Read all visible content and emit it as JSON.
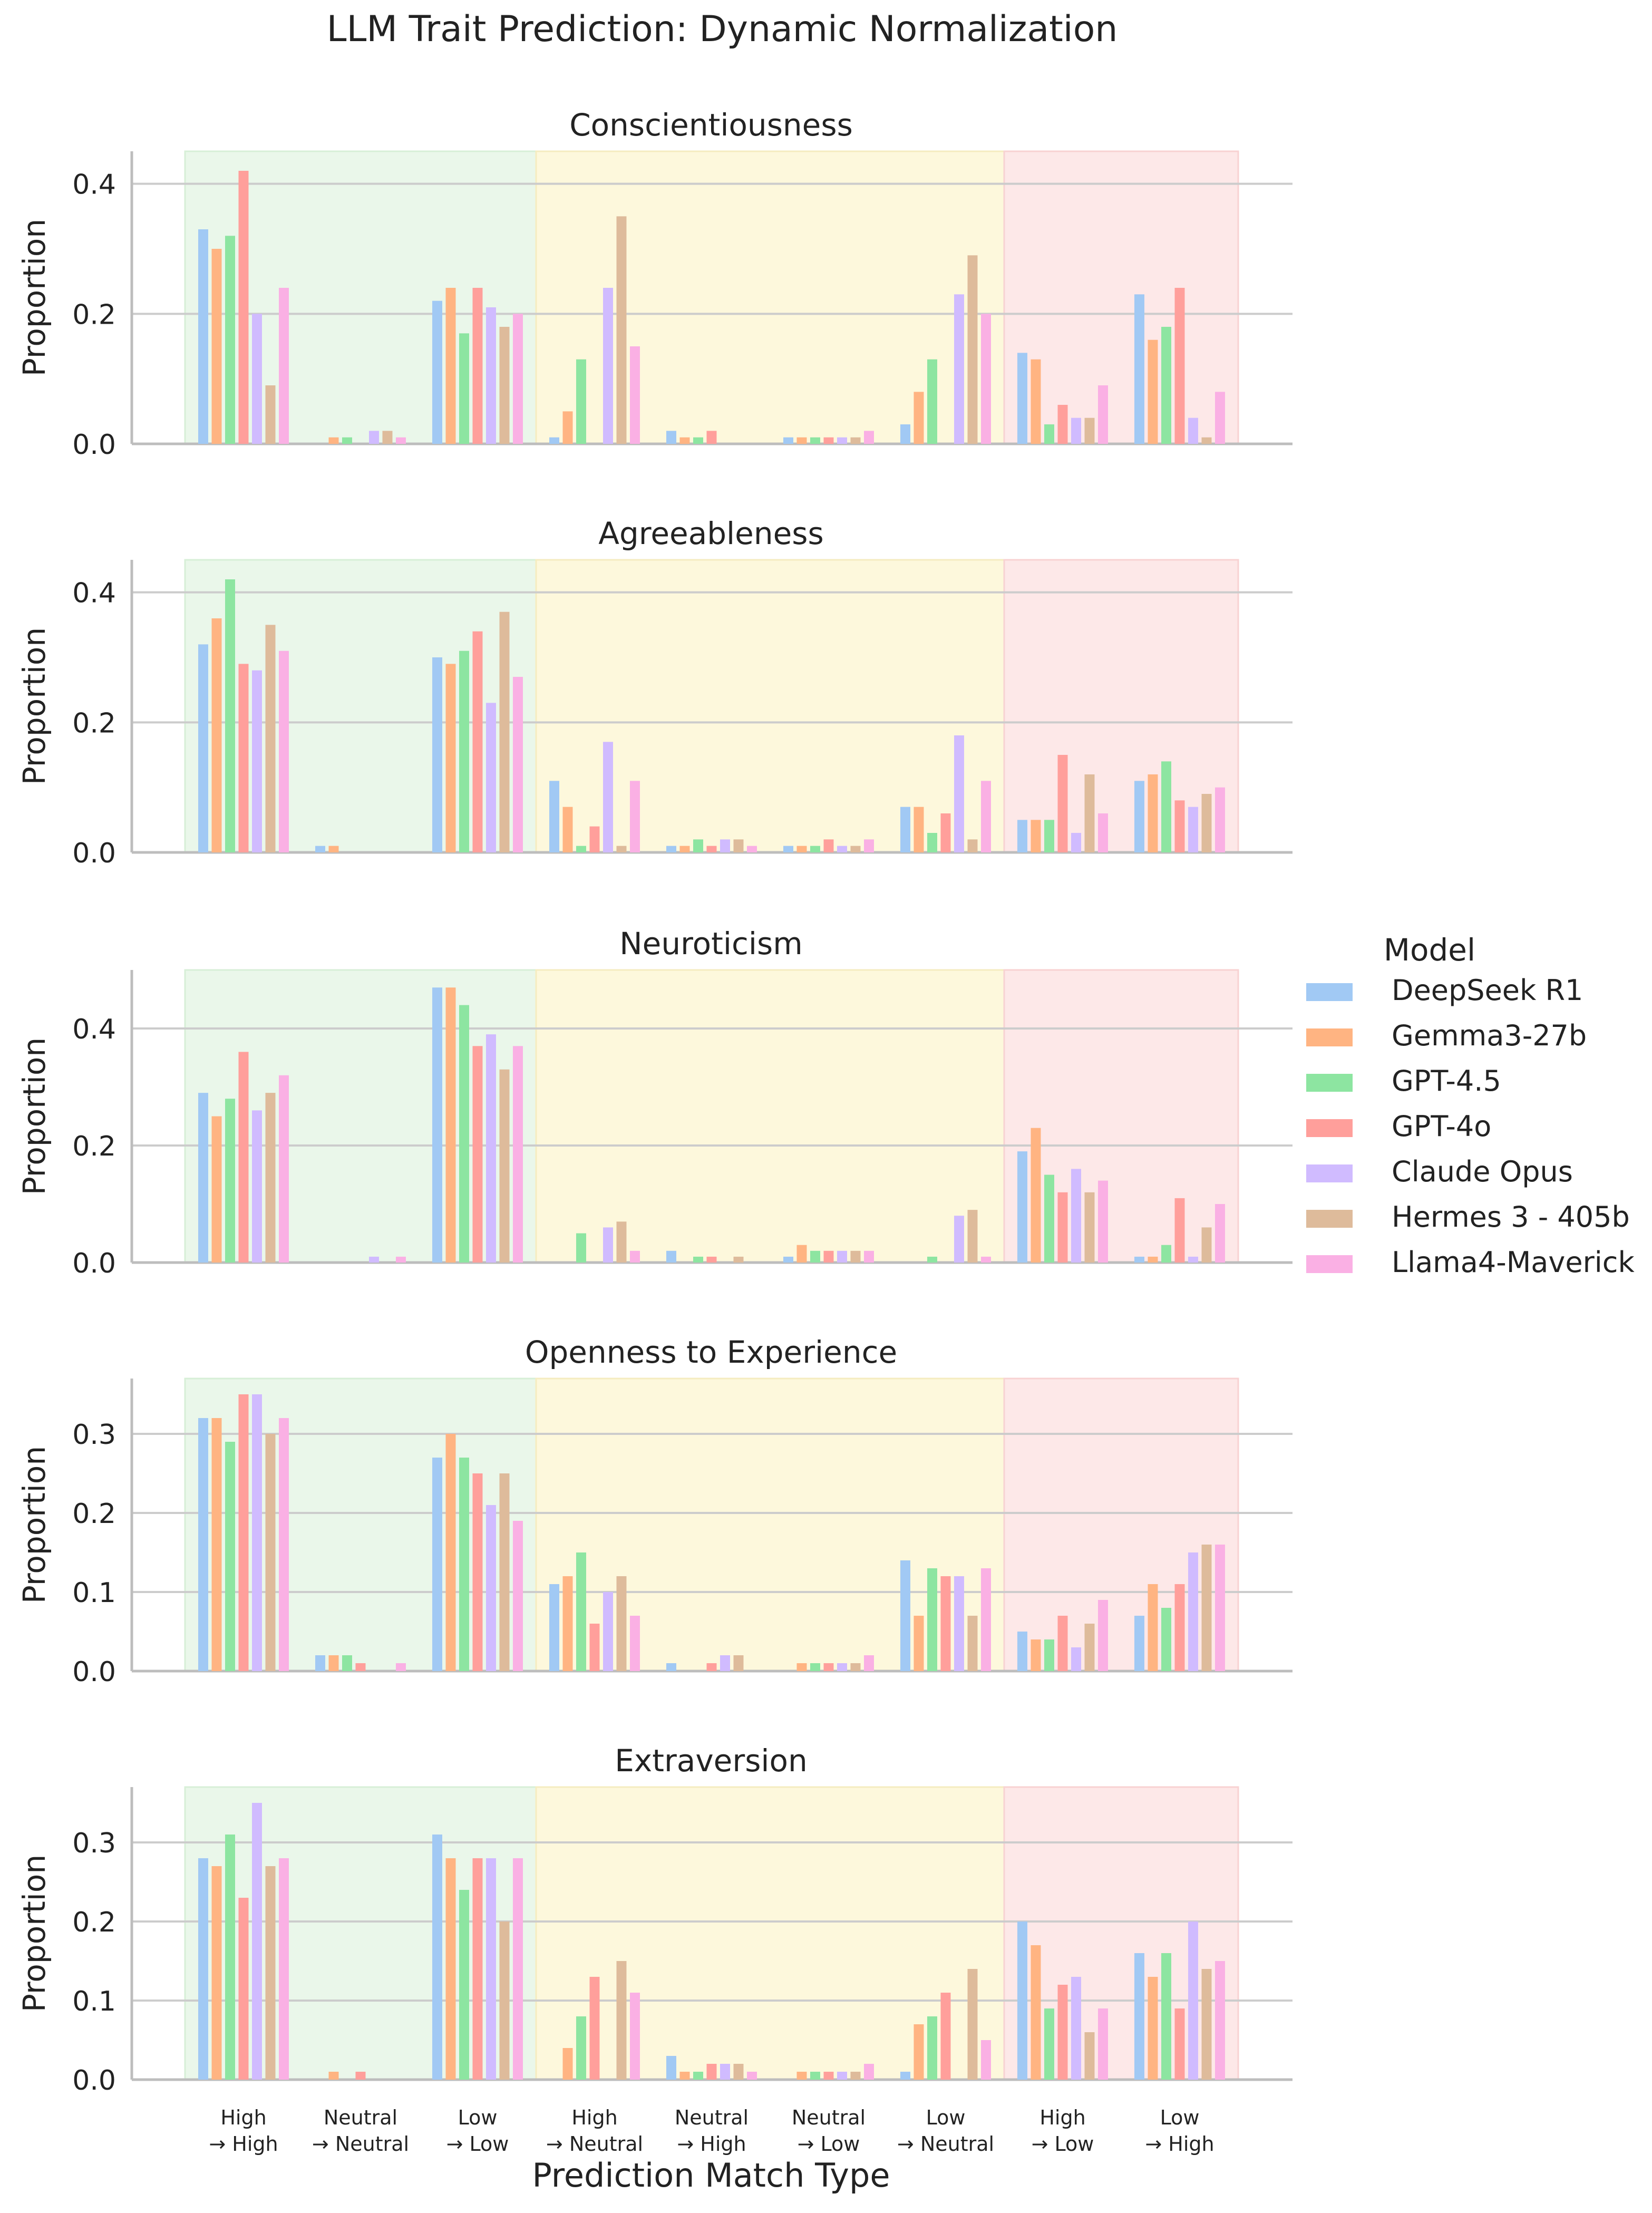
{
  "title": "LLM Trait Prediction: Dynamic Normalization",
  "xlabel": "Prediction Match Type",
  "ylabel": "Proportion",
  "categories": [
    [
      "High",
      "→ High"
    ],
    [
      "Neutral",
      "→ Neutral"
    ],
    [
      "Low",
      "→ Low"
    ],
    [
      "High",
      "→ Neutral"
    ],
    [
      "Neutral",
      "→ High"
    ],
    [
      "Neutral",
      "→ Low"
    ],
    [
      "Low",
      "→ Neutral"
    ],
    [
      "High",
      "→ Low"
    ],
    [
      "Low",
      "→ High"
    ]
  ],
  "legend": {
    "title": "Model",
    "entries": [
      "DeepSeek R1",
      "Gemma3-27b",
      "GPT-4.5",
      "GPT-4o",
      "Claude Opus",
      "Hermes 3 - 405b",
      "Llama4-Maverick"
    ]
  },
  "colors": {
    "series": [
      "#a1c9f4",
      "#ffb482",
      "#8de5a1",
      "#ff9f9b",
      "#d0bbff",
      "#debb9b",
      "#fab0e4"
    ],
    "regions": [
      "#eaf7ea",
      "#fdf8dc",
      "#fde8e8"
    ],
    "region_edges": [
      "#d7efd7",
      "#f5ecc0",
      "#f8d2d2"
    ],
    "grid": "#cccccc",
    "axis": "#bdbdbd"
  },
  "region_spans": [
    [
      0,
      2
    ],
    [
      3,
      6
    ],
    [
      7,
      8
    ]
  ],
  "chart_data": [
    {
      "type": "bar",
      "title": "Conscientiousness",
      "ylim": [
        0,
        0.45
      ],
      "yticks": [
        0.0,
        0.2,
        0.4
      ],
      "tick_labels": [
        "0.0",
        "0.2",
        "0.4"
      ],
      "series": [
        {
          "name": "DeepSeek R1",
          "values": [
            0.33,
            0.0,
            0.22,
            0.01,
            0.02,
            0.01,
            0.03,
            0.14,
            0.23
          ]
        },
        {
          "name": "Gemma3-27b",
          "values": [
            0.3,
            0.01,
            0.24,
            0.05,
            0.01,
            0.01,
            0.08,
            0.13,
            0.16
          ]
        },
        {
          "name": "GPT-4.5",
          "values": [
            0.32,
            0.01,
            0.17,
            0.13,
            0.01,
            0.01,
            0.13,
            0.03,
            0.18
          ]
        },
        {
          "name": "GPT-4o",
          "values": [
            0.42,
            0.0,
            0.24,
            0.0,
            0.02,
            0.01,
            0.0,
            0.06,
            0.24
          ]
        },
        {
          "name": "Claude Opus",
          "values": [
            0.2,
            0.02,
            0.21,
            0.24,
            0.0,
            0.01,
            0.23,
            0.04,
            0.04
          ]
        },
        {
          "name": "Hermes 3 - 405b",
          "values": [
            0.09,
            0.02,
            0.18,
            0.35,
            0.0,
            0.01,
            0.29,
            0.04,
            0.01
          ]
        },
        {
          "name": "Llama4-Maverick",
          "values": [
            0.24,
            0.01,
            0.2,
            0.15,
            0.0,
            0.02,
            0.2,
            0.09,
            0.08
          ]
        }
      ]
    },
    {
      "type": "bar",
      "title": "Agreeableness",
      "ylim": [
        0,
        0.45
      ],
      "yticks": [
        0.0,
        0.2,
        0.4
      ],
      "tick_labels": [
        "0.0",
        "0.2",
        "0.4"
      ],
      "series": [
        {
          "name": "DeepSeek R1",
          "values": [
            0.32,
            0.01,
            0.3,
            0.11,
            0.01,
            0.01,
            0.07,
            0.05,
            0.11
          ]
        },
        {
          "name": "Gemma3-27b",
          "values": [
            0.36,
            0.01,
            0.29,
            0.07,
            0.01,
            0.01,
            0.07,
            0.05,
            0.12
          ]
        },
        {
          "name": "GPT-4.5",
          "values": [
            0.42,
            0.0,
            0.31,
            0.01,
            0.02,
            0.01,
            0.03,
            0.05,
            0.14
          ]
        },
        {
          "name": "GPT-4o",
          "values": [
            0.29,
            0.0,
            0.34,
            0.04,
            0.01,
            0.02,
            0.06,
            0.15,
            0.08
          ]
        },
        {
          "name": "Claude Opus",
          "values": [
            0.28,
            0.0,
            0.23,
            0.17,
            0.02,
            0.01,
            0.18,
            0.03,
            0.07
          ]
        },
        {
          "name": "Hermes 3 - 405b",
          "values": [
            0.35,
            0.0,
            0.37,
            0.01,
            0.02,
            0.01,
            0.02,
            0.12,
            0.09
          ]
        },
        {
          "name": "Llama4-Maverick",
          "values": [
            0.31,
            0.0,
            0.27,
            0.11,
            0.01,
            0.02,
            0.11,
            0.06,
            0.1
          ]
        }
      ]
    },
    {
      "type": "bar",
      "title": "Neuroticism",
      "ylim": [
        0,
        0.5
      ],
      "yticks": [
        0.0,
        0.2,
        0.4
      ],
      "tick_labels": [
        "0.0",
        "0.2",
        "0.4"
      ],
      "series": [
        {
          "name": "DeepSeek R1",
          "values": [
            0.29,
            0.0,
            0.47,
            0.0,
            0.02,
            0.01,
            0.0,
            0.19,
            0.01
          ]
        },
        {
          "name": "Gemma3-27b",
          "values": [
            0.25,
            0.0,
            0.47,
            0.0,
            0.0,
            0.03,
            0.0,
            0.23,
            0.01
          ]
        },
        {
          "name": "GPT-4.5",
          "values": [
            0.28,
            0.0,
            0.44,
            0.05,
            0.01,
            0.02,
            0.01,
            0.15,
            0.03
          ]
        },
        {
          "name": "GPT-4o",
          "values": [
            0.36,
            0.0,
            0.37,
            0.0,
            0.01,
            0.02,
            0.0,
            0.12,
            0.11
          ]
        },
        {
          "name": "Claude Opus",
          "values": [
            0.26,
            0.01,
            0.39,
            0.06,
            0.0,
            0.02,
            0.08,
            0.16,
            0.01
          ]
        },
        {
          "name": "Hermes 3 - 405b",
          "values": [
            0.29,
            0.0,
            0.33,
            0.07,
            0.01,
            0.02,
            0.09,
            0.12,
            0.06
          ]
        },
        {
          "name": "Llama4-Maverick",
          "values": [
            0.32,
            0.01,
            0.37,
            0.02,
            0.0,
            0.02,
            0.01,
            0.14,
            0.1
          ]
        }
      ]
    },
    {
      "type": "bar",
      "title": "Openness to Experience",
      "ylim": [
        0,
        0.37
      ],
      "yticks": [
        0.0,
        0.1,
        0.2,
        0.3
      ],
      "tick_labels": [
        "0.0",
        "0.1",
        "0.2",
        "0.3"
      ],
      "series": [
        {
          "name": "DeepSeek R1",
          "values": [
            0.32,
            0.02,
            0.27,
            0.11,
            0.01,
            0.0,
            0.14,
            0.05,
            0.07
          ]
        },
        {
          "name": "Gemma3-27b",
          "values": [
            0.32,
            0.02,
            0.3,
            0.12,
            0.0,
            0.01,
            0.07,
            0.04,
            0.11
          ]
        },
        {
          "name": "GPT-4.5",
          "values": [
            0.29,
            0.02,
            0.27,
            0.15,
            0.0,
            0.01,
            0.13,
            0.04,
            0.08
          ]
        },
        {
          "name": "GPT-4o",
          "values": [
            0.35,
            0.01,
            0.25,
            0.06,
            0.01,
            0.01,
            0.12,
            0.07,
            0.11
          ]
        },
        {
          "name": "Claude Opus",
          "values": [
            0.35,
            0.0,
            0.21,
            0.1,
            0.02,
            0.01,
            0.12,
            0.03,
            0.15
          ]
        },
        {
          "name": "Hermes 3 - 405b",
          "values": [
            0.3,
            0.0,
            0.25,
            0.12,
            0.02,
            0.01,
            0.07,
            0.06,
            0.16
          ]
        },
        {
          "name": "Llama4-Maverick",
          "values": [
            0.32,
            0.01,
            0.19,
            0.07,
            0.0,
            0.02,
            0.13,
            0.09,
            0.16
          ]
        }
      ]
    },
    {
      "type": "bar",
      "title": "Extraversion",
      "ylim": [
        0,
        0.37
      ],
      "yticks": [
        0.0,
        0.1,
        0.2,
        0.3
      ],
      "tick_labels": [
        "0.0",
        "0.1",
        "0.2",
        "0.3"
      ],
      "series": [
        {
          "name": "DeepSeek R1",
          "values": [
            0.28,
            0.0,
            0.31,
            0.0,
            0.03,
            0.0,
            0.01,
            0.2,
            0.16
          ]
        },
        {
          "name": "Gemma3-27b",
          "values": [
            0.27,
            0.01,
            0.28,
            0.04,
            0.01,
            0.01,
            0.07,
            0.17,
            0.13
          ]
        },
        {
          "name": "GPT-4.5",
          "values": [
            0.31,
            0.0,
            0.24,
            0.08,
            0.01,
            0.01,
            0.08,
            0.09,
            0.16
          ]
        },
        {
          "name": "GPT-4o",
          "values": [
            0.23,
            0.01,
            0.28,
            0.13,
            0.02,
            0.01,
            0.11,
            0.12,
            0.09
          ]
        },
        {
          "name": "Claude Opus",
          "values": [
            0.35,
            0.0,
            0.28,
            0.0,
            0.02,
            0.01,
            0.0,
            0.13,
            0.2
          ]
        },
        {
          "name": "Hermes 3 - 405b",
          "values": [
            0.27,
            0.0,
            0.2,
            0.15,
            0.02,
            0.01,
            0.14,
            0.06,
            0.14
          ]
        },
        {
          "name": "Llama4-Maverick",
          "values": [
            0.28,
            0.0,
            0.28,
            0.11,
            0.01,
            0.02,
            0.05,
            0.09,
            0.15
          ]
        }
      ]
    }
  ]
}
